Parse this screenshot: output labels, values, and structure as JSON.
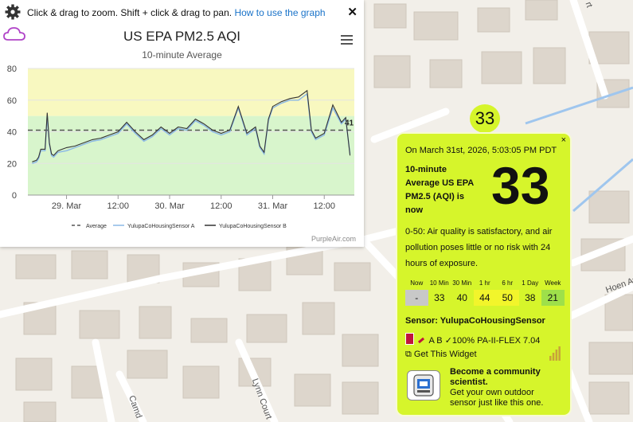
{
  "map": {
    "street_labels": [
      "Hoen Av",
      "Lynn Court",
      "Camd",
      "rt"
    ]
  },
  "chart_panel": {
    "hint_text": "Click & drag to zoom. Shift + click & drag to pan.",
    "hint_link": "How to use the graph",
    "close_glyph": "✕",
    "credit": "PurpleAir.com"
  },
  "chart_data": {
    "type": "line",
    "title": "US EPA PM2.5 AQI",
    "subtitle": "10-minute Average",
    "x_tick_labels": [
      "29. Mar",
      "12:00",
      "30. Mar",
      "12:00",
      "31. Mar",
      "12:00"
    ],
    "x_ticks_hours": [
      0,
      12,
      24,
      36,
      48,
      60
    ],
    "xlim_hours": [
      -9,
      67
    ],
    "ylim": [
      0,
      80
    ],
    "y_ticks": [
      0,
      20,
      40,
      60,
      80
    ],
    "average": 41,
    "average_label": "41",
    "bands": [
      {
        "from": 0,
        "to": 50,
        "color": "#d8f5cc"
      },
      {
        "from": 50,
        "to": 80,
        "color": "#f8f8c0"
      }
    ],
    "series": [
      {
        "name": "YulupaCoHousingSensor A",
        "color": "#8ab8e6",
        "x": [
          -8,
          -7,
          -6.5,
          -6,
          -5,
          -4.5,
          -4,
          -3.5,
          -3,
          -2,
          0,
          2,
          4,
          6,
          8,
          10,
          12,
          14,
          16,
          18,
          20,
          22,
          24,
          26,
          28,
          30,
          32,
          34,
          36,
          38,
          40,
          42,
          44,
          45,
          46,
          47,
          48,
          50,
          52,
          54,
          56,
          57,
          58,
          60,
          62,
          64,
          65,
          66
        ],
        "values": [
          20,
          21,
          23,
          28,
          28,
          50,
          32,
          25,
          24,
          27,
          28,
          30,
          32,
          34,
          35,
          37,
          39,
          45,
          39,
          34,
          37,
          42,
          38,
          42,
          41,
          47,
          44,
          40,
          38,
          40,
          55,
          38,
          42,
          30,
          26,
          47,
          55,
          58,
          60,
          60,
          64,
          40,
          35,
          38,
          55,
          45,
          48,
          26
        ]
      },
      {
        "name": "YulupaCoHousingSensor B",
        "color": "#333333",
        "x": [
          -8,
          -7,
          -6.5,
          -6,
          -5,
          -4.5,
          -4,
          -3.5,
          -3,
          -2,
          0,
          2,
          4,
          6,
          8,
          10,
          12,
          14,
          16,
          18,
          20,
          22,
          24,
          26,
          28,
          30,
          32,
          34,
          36,
          38,
          40,
          42,
          44,
          45,
          46,
          47,
          48,
          50,
          52,
          54,
          56,
          57,
          58,
          60,
          62,
          64,
          65,
          66
        ],
        "values": [
          21,
          22,
          24,
          29,
          29,
          52,
          33,
          26,
          25,
          28,
          30,
          31,
          33,
          35,
          36,
          38,
          40,
          46,
          40,
          35,
          38,
          43,
          39,
          43,
          42,
          48,
          45,
          41,
          39,
          41,
          56,
          39,
          43,
          31,
          27,
          48,
          56,
          59,
          61,
          62,
          66,
          41,
          36,
          39,
          57,
          46,
          49,
          25
        ]
      }
    ],
    "legend": [
      "Average",
      "YulupaCoHousingSensor A",
      "YulupaCoHousingSensor B"
    ],
    "legend_position": "bottom"
  },
  "popup": {
    "marker_value": "33",
    "close_glyph": "×",
    "date": "On March 31st, 2026, 5:03:05 PM PDT",
    "desc": "10-minute Average US EPA PM2.5 (AQI) is now",
    "value": "33",
    "info": "0-50: Air quality is satisfactory, and air pollution poses little or no risk with 24 hours of exposure.",
    "averages": [
      {
        "label": "Now",
        "value": "-",
        "color": "#c8c8c8"
      },
      {
        "label": "10 Min",
        "value": "33",
        "color": "#d6f52b"
      },
      {
        "label": "30 Min",
        "value": "40",
        "color": "#d6f52b"
      },
      {
        "label": "1 hr",
        "value": "44",
        "color": "#f2f52b"
      },
      {
        "label": "6 hr",
        "value": "50",
        "color": "#f2f52b"
      },
      {
        "label": "1 Day",
        "value": "38",
        "color": "#d6f52b"
      },
      {
        "label": "Week",
        "value": "21",
        "color": "#9ee04a"
      }
    ],
    "sensor_label": "Sensor: YulupaCoHousingSensor",
    "sensor_status": "A B ✓100% PA-II-FLEX 7.04",
    "widget_link": "⧉ Get This Widget",
    "cs_title": "Become a community scientist.",
    "cs_text": "Get your own outdoor sensor just like this one."
  },
  "colors": {
    "popup_bg": "#d6f52b",
    "link": "#1a73c9",
    "average_line": "#555555"
  }
}
